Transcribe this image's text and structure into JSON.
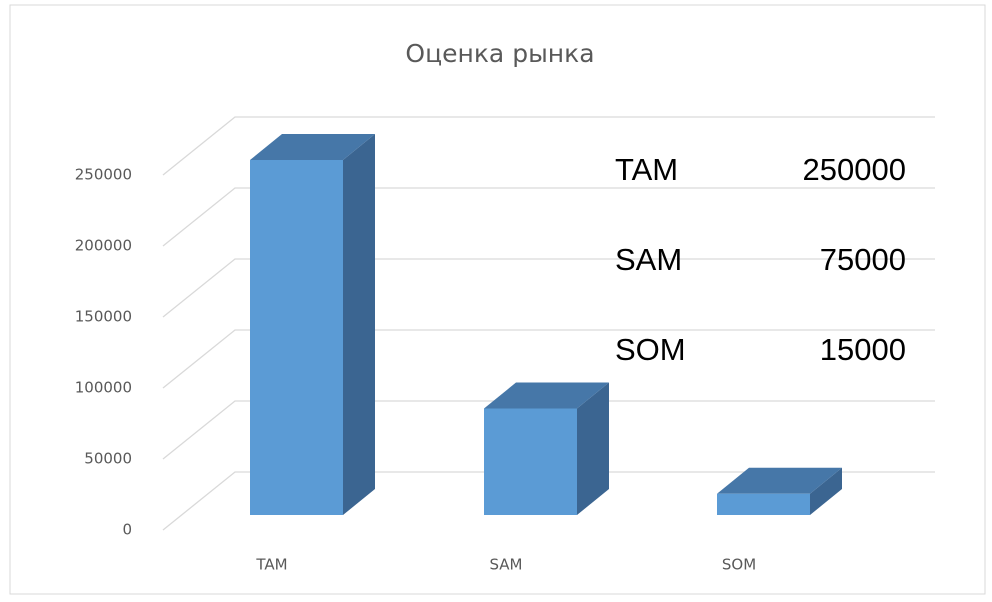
{
  "chart_data": {
    "type": "bar3d",
    "title": "Оценка рынка",
    "categories": [
      "TAM",
      "SAM",
      "SOM"
    ],
    "values": [
      250000,
      75000,
      15000
    ],
    "color": "#5b9bd5",
    "ylim": [
      0,
      250000
    ],
    "yticks": [
      0,
      50000,
      100000,
      150000,
      200000,
      250000
    ],
    "grid": true
  }
}
